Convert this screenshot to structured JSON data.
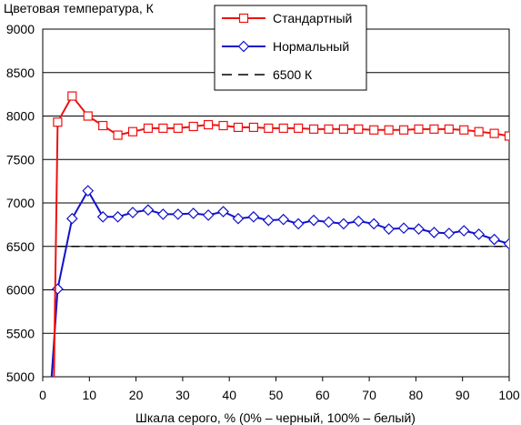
{
  "chart_data": {
    "type": "line",
    "title": "",
    "ylabel": "Цветовая температура, К",
    "xlabel": "Шкала серого, % (0% – черный, 100% – белый)",
    "xlim": [
      0,
      100
    ],
    "ylim": [
      5000,
      9000
    ],
    "xticks": [
      0,
      10,
      20,
      30,
      40,
      50,
      60,
      70,
      80,
      90,
      100
    ],
    "yticks": [
      5000,
      5500,
      6000,
      6500,
      7000,
      7500,
      8000,
      8500,
      9000
    ],
    "grid": "horizontal",
    "legend_position": "top-center",
    "series": [
      {
        "name": "Стандартный",
        "color": "#ee1111",
        "marker": "square",
        "line_style": "solid",
        "x": [
          2.4,
          3.2,
          6.3,
          9.7,
          12.9,
          16.1,
          19.3,
          22.6,
          25.8,
          29.0,
          32.3,
          35.5,
          38.7,
          41.9,
          45.2,
          48.4,
          51.6,
          54.8,
          58.1,
          61.3,
          64.5,
          67.7,
          71.0,
          74.2,
          77.4,
          80.6,
          83.9,
          87.1,
          90.3,
          93.5,
          96.8,
          100.0
        ],
        "values": [
          5000,
          7930,
          8230,
          8000,
          7890,
          7780,
          7820,
          7860,
          7860,
          7860,
          7880,
          7900,
          7890,
          7870,
          7870,
          7860,
          7860,
          7860,
          7850,
          7850,
          7850,
          7850,
          7840,
          7840,
          7840,
          7850,
          7850,
          7850,
          7840,
          7820,
          7800,
          7770
        ]
      },
      {
        "name": "Нормальный",
        "color": "#1111cc",
        "marker": "diamond",
        "line_style": "solid",
        "x": [
          1.9,
          3.2,
          6.3,
          9.7,
          12.9,
          16.1,
          19.3,
          22.6,
          25.8,
          29.0,
          32.3,
          35.5,
          38.7,
          41.9,
          45.2,
          48.4,
          51.6,
          54.8,
          58.1,
          61.3,
          64.5,
          67.7,
          71.0,
          74.2,
          77.4,
          80.6,
          83.9,
          87.1,
          90.3,
          93.5,
          96.8,
          100.0
        ],
        "values": [
          5000,
          6010,
          6820,
          7140,
          6840,
          6840,
          6890,
          6920,
          6870,
          6870,
          6880,
          6860,
          6900,
          6820,
          6840,
          6800,
          6810,
          6760,
          6800,
          6780,
          6760,
          6790,
          6760,
          6700,
          6710,
          6700,
          6660,
          6650,
          6680,
          6640,
          6580,
          6530
        ]
      },
      {
        "name": "6500 К",
        "color": "#000000",
        "marker": "none",
        "line_style": "dashed",
        "x": [
          3.2,
          100.0
        ],
        "values": [
          6500,
          6500
        ]
      }
    ]
  }
}
